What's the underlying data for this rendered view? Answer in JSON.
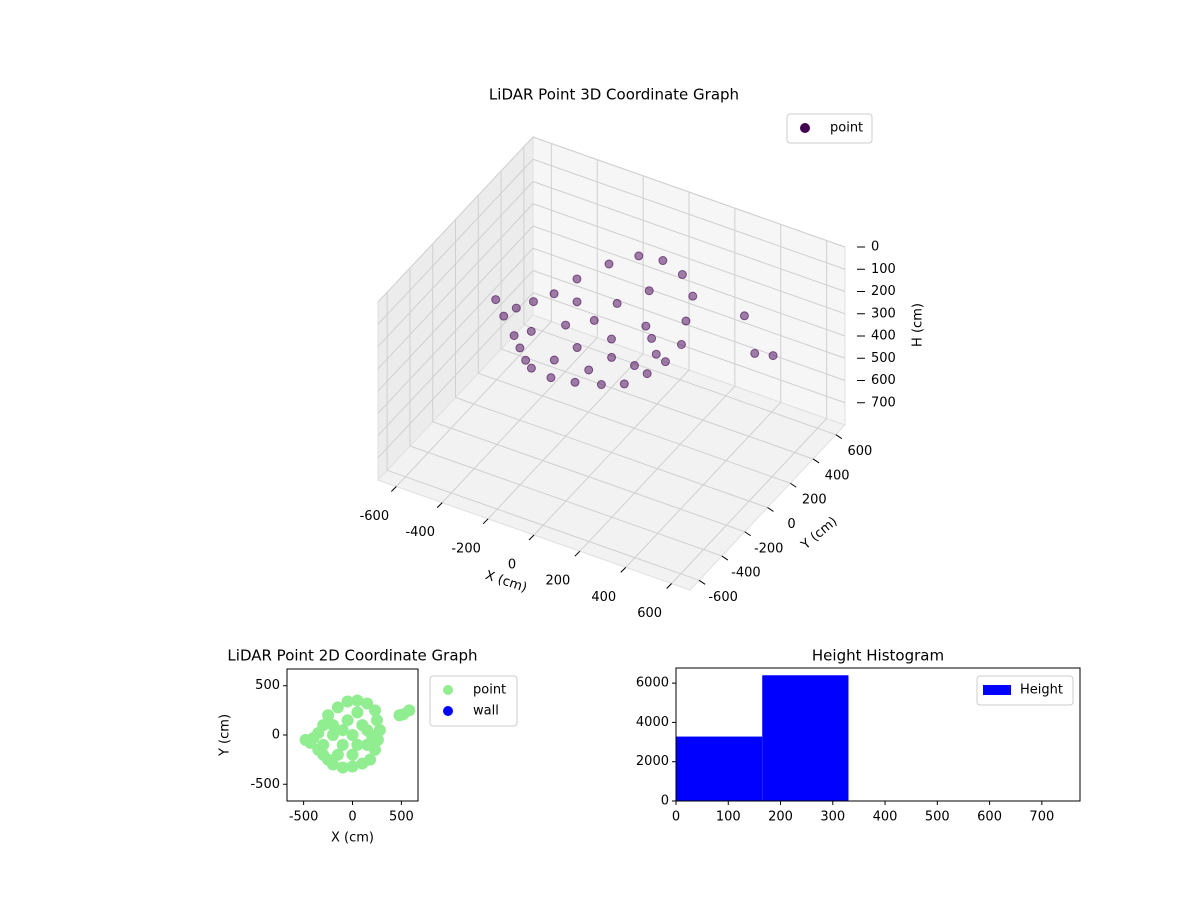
{
  "chart_data": [
    {
      "type": "scatter3d",
      "title": "LiDAR Point 3D Coordinate Graph",
      "xlabel": "X (cm)",
      "ylabel": "Y (cm)",
      "zlabel": "H (cm)",
      "xlim": [
        -680,
        680
      ],
      "ylim": [
        -680,
        680
      ],
      "zlim": [
        0,
        800
      ],
      "zinverted": true,
      "xticks": [
        -600,
        -400,
        -200,
        0,
        200,
        400,
        600
      ],
      "yticks": [
        -600,
        -400,
        -200,
        0,
        200,
        400,
        600
      ],
      "zticks": [
        0,
        100,
        200,
        300,
        400,
        500,
        600,
        700
      ],
      "legend": "upper right",
      "grid": true,
      "series": [
        {
          "name": "point",
          "color": "#440154",
          "x": [
            -480,
            -430,
            -400,
            -350,
            -300,
            -250,
            -200,
            -100,
            0,
            100,
            180,
            230,
            260,
            280,
            250,
            230,
            150,
            50,
            -50,
            -150,
            -250,
            -300,
            -350,
            -200,
            -100,
            0,
            100,
            -50,
            150,
            0,
            -150,
            50,
            150,
            -100,
            50,
            -200,
            200,
            -300,
            480,
            520,
            580
          ],
          "y": [
            -50,
            -80,
            -30,
            -150,
            -200,
            -250,
            -300,
            -330,
            -320,
            -290,
            -250,
            -150,
            -50,
            50,
            150,
            250,
            320,
            350,
            340,
            280,
            200,
            100,
            20,
            0,
            -100,
            0,
            100,
            150,
            -100,
            -200,
            -200,
            -100,
            50,
            50,
            230,
            100,
            -10,
            -100,
            200,
            210,
            250
          ],
          "z": [
            260,
            300,
            280,
            320,
            330,
            340,
            330,
            320,
            310,
            300,
            290,
            280,
            270,
            240,
            200,
            150,
            120,
            110,
            120,
            160,
            220,
            250,
            260,
            300,
            310,
            290,
            250,
            230,
            300,
            320,
            330,
            300,
            260,
            270,
            180,
            250,
            280,
            310,
            120,
            280,
            290
          ]
        }
      ]
    },
    {
      "type": "scatter",
      "title": "LiDAR Point 2D Coordinate Graph",
      "xlabel": "X (cm)",
      "ylabel": "Y (cm)",
      "xlim": [
        -670,
        670
      ],
      "ylim": [
        -670,
        670
      ],
      "xticks": [
        -500,
        0,
        500
      ],
      "yticks": [
        -500,
        0,
        500
      ],
      "legend": "outside upper right",
      "series": [
        {
          "name": "point",
          "color": "#90ee90",
          "x": [
            -480,
            -430,
            -400,
            -350,
            -300,
            -250,
            -200,
            -100,
            0,
            100,
            180,
            230,
            260,
            280,
            250,
            230,
            150,
            50,
            -50,
            -150,
            -250,
            -300,
            -350,
            -200,
            -100,
            0,
            100,
            -50,
            150,
            0,
            -150,
            50,
            150,
            -100,
            50,
            -200,
            200,
            -300,
            480,
            520,
            580
          ],
          "y": [
            -50,
            -80,
            -30,
            -150,
            -200,
            -250,
            -300,
            -330,
            -320,
            -290,
            -250,
            -150,
            -50,
            50,
            150,
            250,
            320,
            350,
            340,
            280,
            200,
            100,
            20,
            0,
            -100,
            0,
            100,
            150,
            -100,
            -200,
            -200,
            -100,
            50,
            50,
            230,
            100,
            -10,
            -100,
            200,
            210,
            250
          ]
        },
        {
          "name": "wall",
          "color": "#0000ff",
          "x": [],
          "y": []
        }
      ]
    },
    {
      "type": "histogram",
      "title": "Height Histogram",
      "bins": [
        0,
        165,
        330,
        495,
        660
      ],
      "counts": [
        3280,
        6400,
        0,
        0
      ],
      "color": "#0000ff",
      "label": "Height",
      "xlim": [
        0,
        773
      ],
      "ylim": [
        0,
        6770
      ],
      "xticks": [
        0,
        100,
        200,
        300,
        400,
        500,
        600,
        700
      ],
      "yticks": [
        0,
        2000,
        4000,
        6000
      ],
      "legend": "upper right"
    }
  ]
}
